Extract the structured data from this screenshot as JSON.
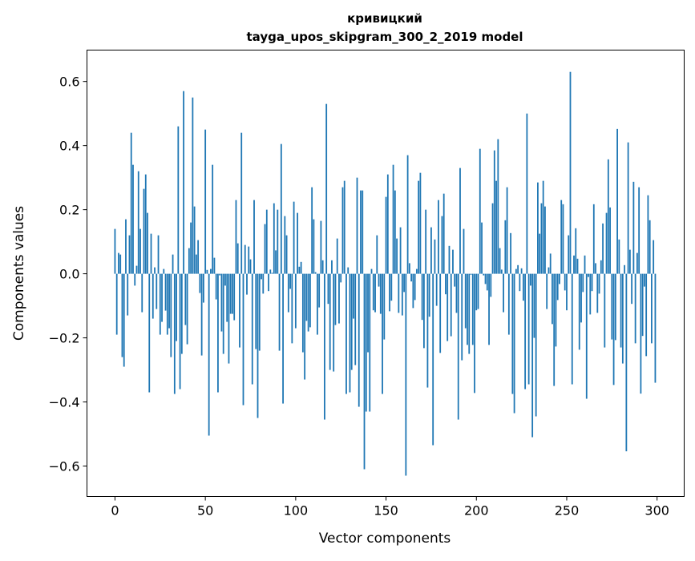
{
  "chart_data": {
    "type": "bar",
    "title": [
      "кривицкий",
      "tayga_upos_skipgram_300_2_2019 model"
    ],
    "xlabel": "Vector components",
    "ylabel": "Components values",
    "xlim": [
      -15.5,
      315
    ],
    "ylim": [
      -0.695,
      0.698
    ],
    "xticks": [
      0,
      50,
      100,
      150,
      200,
      250,
      300
    ],
    "xtick_labels": [
      "0",
      "50",
      "100",
      "150",
      "200",
      "250",
      "300"
    ],
    "yticks": [
      -0.6,
      -0.4,
      -0.2,
      0.0,
      0.2,
      0.4,
      0.6
    ],
    "ytick_labels": [
      "−0.6",
      "−0.4",
      "−0.2",
      "0.0",
      "0.2",
      "0.4",
      "0.6"
    ],
    "grid": false,
    "bar_color": "#1f77b4",
    "values": [
      0.14,
      -0.19,
      0.065,
      0.06,
      -0.26,
      -0.29,
      0.17,
      -0.13,
      0.12,
      0.44,
      0.34,
      -0.037,
      0.025,
      0.32,
      0.14,
      -0.12,
      0.265,
      0.31,
      0.19,
      -0.37,
      0.125,
      -0.14,
      0.02,
      -0.11,
      0.12,
      -0.19,
      -0.15,
      0.015,
      -0.115,
      -0.19,
      -0.17,
      -0.26,
      0.06,
      -0.375,
      -0.21,
      0.46,
      -0.36,
      -0.25,
      0.57,
      -0.16,
      -0.22,
      0.08,
      0.16,
      0.55,
      0.21,
      0.06,
      0.105,
      -0.06,
      -0.255,
      -0.09,
      0.45,
      0.012,
      -0.505,
      0.015,
      0.34,
      0.05,
      -0.08,
      -0.37,
      -0.005,
      -0.18,
      -0.25,
      -0.037,
      -0.15,
      -0.28,
      -0.125,
      -0.125,
      -0.145,
      0.23,
      0.095,
      -0.23,
      0.44,
      -0.41,
      0.09,
      -0.065,
      0.085,
      0.045,
      -0.345,
      0.23,
      -0.235,
      -0.45,
      -0.24,
      -0.017,
      -0.062,
      0.155,
      0.2,
      -0.054,
      0.013,
      0.003,
      0.22,
      0.073,
      0.2,
      -0.24,
      0.405,
      -0.405,
      0.18,
      0.12,
      -0.12,
      -0.047,
      -0.217,
      0.225,
      -0.17,
      0.19,
      0.022,
      0.037,
      -0.245,
      -0.33,
      -0.147,
      -0.18,
      -0.167,
      0.27,
      0.17,
      0.005,
      -0.19,
      -0.105,
      0.165,
      0.042,
      -0.455,
      0.53,
      -0.094,
      -0.3,
      0.042,
      -0.305,
      -0.16,
      0.11,
      -0.155,
      -0.027,
      0.27,
      0.29,
      -0.375,
      0.02,
      -0.37,
      -0.3,
      -0.14,
      -0.285,
      0.3,
      -0.415,
      0.26,
      0.26,
      -0.61,
      -0.43,
      -0.245,
      -0.43,
      0.015,
      -0.114,
      -0.12,
      0.12,
      -0.04,
      -0.125,
      -0.375,
      -0.205,
      0.24,
      0.31,
      -0.117,
      -0.084,
      0.34,
      0.26,
      0.11,
      -0.122,
      0.145,
      -0.13,
      -0.057,
      -0.63,
      0.37,
      0.033,
      -0.024,
      -0.107,
      -0.082,
      0.015,
      0.29,
      0.315,
      -0.144,
      -0.232,
      0.2,
      -0.355,
      -0.134,
      0.145,
      -0.535,
      0.107,
      -0.1,
      0.23,
      -0.247,
      0.18,
      0.25,
      -0.064,
      -0.21,
      0.087,
      -0.195,
      0.075,
      -0.04,
      -0.122,
      -0.455,
      0.33,
      -0.27,
      0.14,
      -0.17,
      -0.222,
      -0.25,
      -0.003,
      -0.222,
      -0.372,
      -0.114,
      -0.11,
      0.39,
      0.16,
      -0.005,
      -0.032,
      -0.052,
      -0.222,
      -0.072,
      0.22,
      0.385,
      0.29,
      0.42,
      0.08,
      0.013,
      -0.12,
      0.167,
      0.27,
      -0.19,
      0.127,
      -0.375,
      -0.435,
      0.015,
      0.027,
      -0.054,
      0.017,
      -0.084,
      -0.36,
      0.5,
      -0.345,
      -0.037,
      -0.51,
      -0.2,
      -0.445,
      0.285,
      0.125,
      0.22,
      0.29,
      0.21,
      -0.11,
      0.02,
      0.063,
      -0.157,
      -0.35,
      -0.227,
      -0.082,
      -0.032,
      0.23,
      0.217,
      -0.052,
      -0.114,
      0.12,
      0.63,
      -0.345,
      0.057,
      0.142,
      0.047,
      -0.237,
      -0.152,
      -0.057,
      0.057,
      -0.39,
      -0.01,
      -0.127,
      -0.054,
      0.217,
      0.033,
      -0.122,
      -0.062,
      0.042,
      0.157,
      -0.23,
      0.19,
      0.357,
      0.207,
      -0.205,
      -0.347,
      -0.207,
      0.452,
      0.107,
      -0.23,
      -0.28,
      0.027,
      -0.554,
      0.41,
      0.075,
      -0.094,
      0.287,
      -0.217,
      0.065,
      0.27,
      -0.374,
      -0.194,
      -0.04,
      -0.257,
      0.245,
      0.167,
      -0.217,
      0.105,
      -0.34
    ]
  }
}
